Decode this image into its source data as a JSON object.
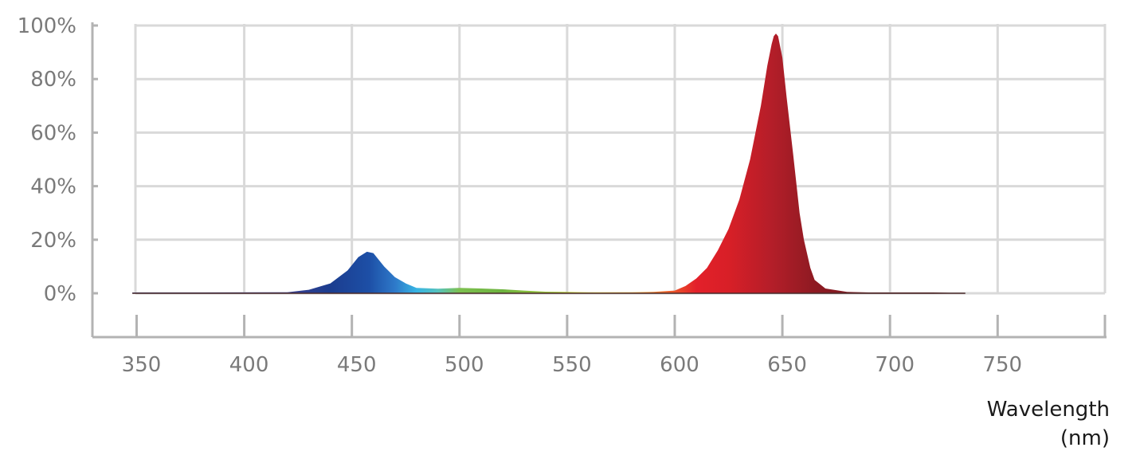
{
  "chart_data": {
    "type": "area",
    "title": "",
    "xlabel": [
      "Wavelength",
      "(nm)"
    ],
    "ylabel": "",
    "xlim": [
      350,
      790
    ],
    "ylim": [
      0,
      100
    ],
    "x_ticks": [
      350,
      400,
      450,
      500,
      550,
      600,
      650,
      700,
      750
    ],
    "x_tick_labels": [
      "350",
      "400",
      "450",
      "500",
      "550",
      "600",
      "650",
      "700",
      "750"
    ],
    "y_ticks": [
      0,
      20,
      40,
      60,
      80,
      100
    ],
    "y_tick_labels": [
      "0%",
      "20%",
      "40%",
      "60%",
      "80%",
      "100%"
    ],
    "grid": true,
    "legend": "none",
    "series": [
      {
        "x": [
          348,
          380,
          420,
          430,
          440,
          448,
          453,
          457,
          460,
          465,
          470,
          475,
          480,
          490,
          500,
          510,
          520,
          530,
          540,
          550,
          560,
          570,
          580,
          590,
          600,
          605,
          610,
          615,
          620,
          625,
          630,
          635,
          640,
          643,
          645,
          646,
          647,
          648,
          650,
          652,
          655,
          658,
          660,
          663,
          665,
          670,
          680,
          690,
          700,
          720,
          735
        ],
        "y": [
          0.3,
          0.3,
          0.4,
          1.3,
          3.7,
          8.5,
          13.5,
          15.5,
          15.0,
          10.0,
          6.0,
          3.7,
          2.0,
          1.7,
          2.0,
          1.8,
          1.5,
          1.0,
          0.6,
          0.5,
          0.4,
          0.4,
          0.4,
          0.5,
          1.0,
          2.7,
          5.5,
          9.5,
          16.0,
          24.0,
          35.0,
          50.0,
          70.0,
          85.0,
          93.0,
          96.0,
          97.0,
          96.0,
          88.0,
          73.0,
          52.0,
          30.0,
          20.0,
          9.5,
          5.0,
          1.8,
          0.5,
          0.3,
          0.3,
          0.3,
          0.0
        ]
      }
    ]
  }
}
